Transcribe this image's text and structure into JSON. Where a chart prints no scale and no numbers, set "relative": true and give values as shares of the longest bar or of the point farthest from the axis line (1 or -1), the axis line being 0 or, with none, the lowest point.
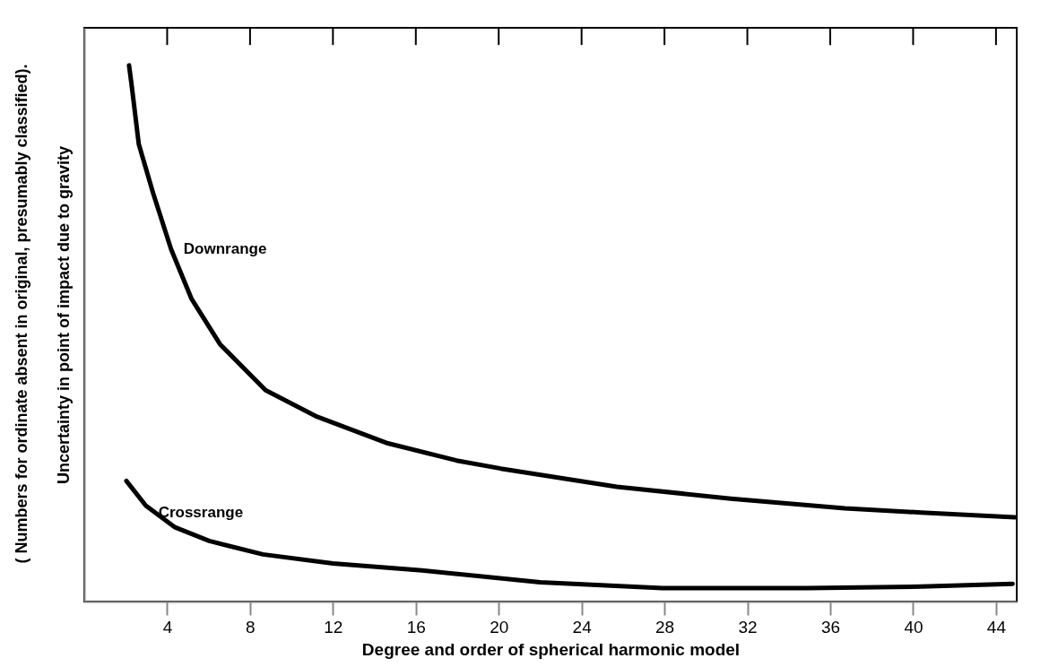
{
  "chart_data": {
    "type": "line",
    "relative": true,
    "xlabel": "Degree and order of spherical harmonic model",
    "ylabel": "Uncertainty in point of impact due to gravity",
    "annotations": [
      "( Numbers for ordinate absent in original, presumably classified)."
    ],
    "xlim": [
      0,
      45
    ],
    "xticks": [
      4,
      8,
      12,
      16,
      20,
      24,
      28,
      32,
      36,
      40,
      44
    ],
    "grid": false,
    "series": [
      {
        "name": "Downrange",
        "color": "#000000",
        "x": [
          2.16,
          2.28,
          2.63,
          3.32,
          4.19,
          5.17,
          6.55,
          8.75,
          11.16,
          14.57,
          17.97,
          20.1,
          25.7,
          31.2,
          36.7,
          40.4,
          44.9
        ],
        "values": [
          1.0,
          0.965,
          0.853,
          0.762,
          0.657,
          0.565,
          0.48,
          0.394,
          0.346,
          0.296,
          0.263,
          0.248,
          0.214,
          0.192,
          0.174,
          0.166,
          0.157
        ]
      },
      {
        "name": "Crossrange",
        "color": "#000000",
        "x": [
          2.03,
          2.97,
          4.35,
          6.03,
          8.62,
          12.0,
          16.3,
          22.0,
          27.9,
          34.9,
          40.4,
          44.8
        ],
        "values": [
          0.225,
          0.179,
          0.139,
          0.113,
          0.088,
          0.071,
          0.058,
          0.036,
          0.025,
          0.025,
          0.028,
          0.033
        ]
      }
    ]
  }
}
